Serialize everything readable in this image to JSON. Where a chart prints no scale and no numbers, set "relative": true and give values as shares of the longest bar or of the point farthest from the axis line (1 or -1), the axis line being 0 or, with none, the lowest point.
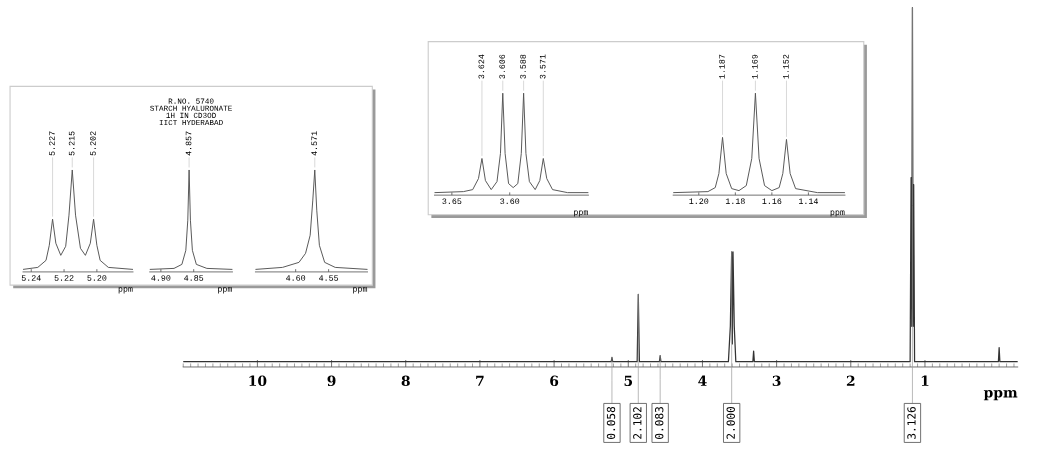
{
  "chart_data": [
    {
      "type": "line",
      "relative": true,
      "xlabel": "ppm",
      "xlim": [
        11.0,
        -0.25
      ],
      "xticks": [
        1,
        2,
        3,
        4,
        5,
        6,
        7,
        8,
        9,
        10
      ],
      "series": [
        {
          "color": "#333333",
          "x": [
            11.0,
            5.23,
            5.22,
            5.21,
            4.88,
            4.865,
            4.85,
            4.58,
            4.57,
            4.56,
            3.65,
            3.624,
            3.606,
            3.597,
            3.588,
            3.571,
            3.55,
            3.32,
            3.31,
            3.3,
            1.2,
            1.187,
            1.178,
            1.169,
            1.16,
            1.152,
            1.14,
            0.01,
            0,
            -0.01,
            -0.25
          ],
          "values": [
            0,
            0,
            0.012,
            0,
            0,
            0.19,
            0,
            0,
            0.017,
            0,
            0,
            0.1,
            0.31,
            0.05,
            0.31,
            0.1,
            0,
            0,
            0.03,
            0,
            0,
            0.52,
            0.1,
            1,
            0.1,
            0.5,
            0,
            0,
            0.04,
            0,
            0
          ]
        }
      ],
      "annotations": [
        {
          "text": "0.058",
          "x": 5.22,
          "y": 0.012
        },
        {
          "text": "2.102",
          "x": 4.865,
          "y": 0.19
        },
        {
          "text": "0.083",
          "x": 4.57,
          "y": 0.017
        },
        {
          "text": "2.000",
          "x": 3.606,
          "y": 0.31
        },
        {
          "text": "3.126",
          "x": 1.169,
          "y": 1
        }
      ]
    },
    {
      "type": "line",
      "relative": true,
      "xlabel": "ppm",
      "xlim": [
        5.245,
        5.178
      ],
      "xticks": [
        {
          "value": 5.24,
          "label": "5.24"
        },
        {
          "value": 5.22,
          "label": "5.22"
        },
        {
          "value": 5.2,
          "label": "5.20"
        }
      ],
      "series": [
        {
          "color": "#555555",
          "x": [
            5.245,
            5.236,
            5.231,
            5.229,
            5.227,
            5.225,
            5.222,
            5.219,
            5.217,
            5.215,
            5.213,
            5.21,
            5.207,
            5.204,
            5.202,
            5.2,
            5.198,
            5.193,
            5.178
          ],
          "values": [
            0.01,
            0.03,
            0.1,
            0.25,
            0.51,
            0.27,
            0.15,
            0.24,
            0.55,
            1.0,
            0.55,
            0.22,
            0.15,
            0.27,
            0.51,
            0.25,
            0.1,
            0.03,
            0.01
          ]
        }
      ],
      "annotations": [
        {
          "text": "5.227",
          "x": 5.227,
          "y": 0.51
        },
        {
          "text": "5.215",
          "x": 5.215,
          "y": 1.0
        },
        {
          "text": "5.202",
          "x": 5.202,
          "y": 0.51
        }
      ]
    },
    {
      "type": "line",
      "relative": true,
      "xlabel": "ppm",
      "xlim": [
        4.917,
        4.791
      ],
      "xticks": [
        {
          "value": 4.9,
          "label": "4.90"
        },
        {
          "value": 4.85,
          "label": "4.85"
        }
      ],
      "series": [
        {
          "color": "#555555",
          "x": [
            4.917,
            4.88,
            4.868,
            4.862,
            4.859,
            4.857,
            4.855,
            4.852,
            4.846,
            4.83,
            4.791
          ],
          "values": [
            0.01,
            0.02,
            0.06,
            0.2,
            0.5,
            1.0,
            0.5,
            0.2,
            0.06,
            0.02,
            0.01
          ]
        }
      ],
      "annotations": [
        "R.NO. 5740\nSTARCH HYALURONATE\n1H IN CD3OD\nIICT HYDERABAD",
        {
          "text": "4.857",
          "x": 4.857,
          "y": 1.0
        }
      ]
    },
    {
      "type": "line",
      "relative": true,
      "xlabel": "ppm",
      "xlim": [
        4.661,
        4.491
      ],
      "xticks": [
        {
          "value": 4.6,
          "label": "4.60"
        },
        {
          "value": 4.55,
          "label": "4.55"
        }
      ],
      "series": [
        {
          "color": "#555555",
          "x": [
            4.661,
            4.62,
            4.595,
            4.585,
            4.578,
            4.574,
            4.571,
            4.568,
            4.564,
            4.556,
            4.54,
            4.491
          ],
          "values": [
            0.01,
            0.03,
            0.08,
            0.17,
            0.35,
            0.7,
            1.0,
            0.6,
            0.25,
            0.08,
            0.03,
            0.01
          ]
        }
      ],
      "annotations": [
        {
          "text": "4.571",
          "x": 4.571,
          "y": 1.0
        }
      ]
    },
    {
      "type": "line",
      "relative": true,
      "xlabel": "ppm",
      "xlim": [
        3.665,
        3.532
      ],
      "xticks": [
        {
          "value": 3.65,
          "label": "3.65"
        },
        {
          "value": 3.6,
          "label": "3.60"
        }
      ],
      "series": [
        {
          "color": "#555555",
          "x": [
            3.665,
            3.64,
            3.632,
            3.627,
            3.624,
            3.621,
            3.616,
            3.611,
            3.608,
            3.606,
            3.604,
            3.601,
            3.597,
            3.593,
            3.59,
            3.588,
            3.586,
            3.583,
            3.578,
            3.574,
            3.571,
            3.568,
            3.563,
            3.55,
            3.532
          ],
          "values": [
            0.01,
            0.02,
            0.04,
            0.15,
            0.35,
            0.13,
            0.04,
            0.12,
            0.4,
            1.0,
            0.4,
            0.1,
            0.06,
            0.1,
            0.4,
            1.0,
            0.4,
            0.12,
            0.04,
            0.13,
            0.35,
            0.15,
            0.04,
            0.01,
            0.01
          ]
        }
      ],
      "annotations": [
        {
          "text": "3.624",
          "x": 3.624,
          "y": 0.35
        },
        {
          "text": "3.606",
          "x": 3.606,
          "y": 1.0
        },
        {
          "text": "3.588",
          "x": 3.588,
          "y": 1.0
        },
        {
          "text": "3.571",
          "x": 3.571,
          "y": 0.35
        }
      ]
    },
    {
      "type": "line",
      "relative": true,
      "xlabel": "ppm",
      "xlim": [
        1.214,
        1.12
      ],
      "xticks": [
        {
          "value": 1.2,
          "label": "1.20"
        },
        {
          "value": 1.18,
          "label": "1.18"
        },
        {
          "value": 1.16,
          "label": "1.16"
        },
        {
          "value": 1.14,
          "label": "1.14"
        }
      ],
      "series": [
        {
          "color": "#555555",
          "x": [
            1.214,
            1.195,
            1.191,
            1.189,
            1.187,
            1.185,
            1.182,
            1.178,
            1.174,
            1.171,
            1.169,
            1.167,
            1.164,
            1.16,
            1.156,
            1.154,
            1.152,
            1.15,
            1.147,
            1.135,
            1.12
          ],
          "values": [
            0.01,
            0.02,
            0.06,
            0.2,
            0.56,
            0.2,
            0.05,
            0.03,
            0.08,
            0.35,
            1.0,
            0.35,
            0.08,
            0.03,
            0.06,
            0.2,
            0.54,
            0.2,
            0.05,
            0.01,
            0.01
          ]
        }
      ],
      "annotations": [
        {
          "text": "1.187",
          "x": 1.187,
          "y": 0.56
        },
        {
          "text": "1.169",
          "x": 1.169,
          "y": 1.0
        },
        {
          "text": "1.152",
          "x": 1.152,
          "y": 0.54
        }
      ]
    }
  ]
}
